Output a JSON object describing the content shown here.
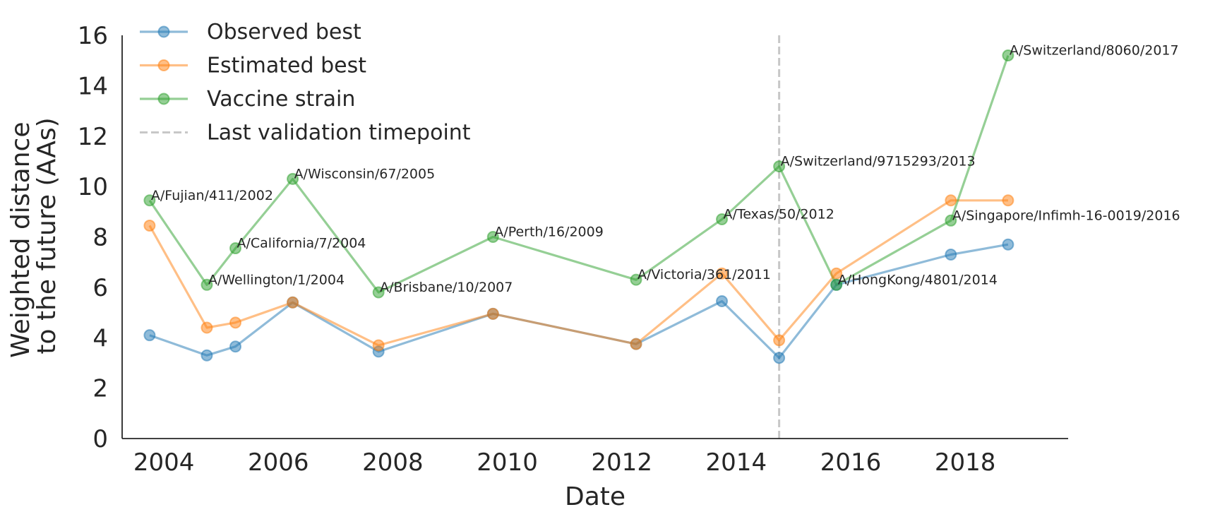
{
  "chart_data": {
    "type": "line",
    "xlabel": "Date",
    "ylabel_lines": [
      "Weighted distance",
      "to the future (AAs)"
    ],
    "xlim": [
      2003.27,
      2019.8
    ],
    "ylim": [
      0,
      16
    ],
    "xticks": [
      2004,
      2006,
      2008,
      2010,
      2012,
      2014,
      2016,
      2018
    ],
    "yticks": [
      0,
      2,
      4,
      6,
      8,
      10,
      12,
      14,
      16
    ],
    "grid": false,
    "legend_position": "top-left",
    "validation_line": {
      "label": "Last validation timepoint",
      "x": 2014.75,
      "color": "#c7c7c7"
    },
    "series": [
      {
        "name": "Observed best",
        "color": "#1f77b4",
        "points": [
          [
            2003.75,
            4.1
          ],
          [
            2004.75,
            3.3
          ],
          [
            2005.25,
            3.65
          ],
          [
            2006.25,
            5.4
          ],
          [
            2007.75,
            3.45
          ],
          [
            2009.75,
            4.95
          ],
          [
            2012.25,
            3.75
          ],
          [
            2013.75,
            5.45
          ],
          [
            2014.75,
            3.2
          ],
          [
            2015.75,
            6.1
          ],
          [
            2017.75,
            7.3
          ],
          [
            2018.75,
            7.7
          ]
        ]
      },
      {
        "name": "Estimated best",
        "color": "#ff7f0e",
        "points": [
          [
            2003.75,
            8.45
          ],
          [
            2004.75,
            4.4
          ],
          [
            2005.25,
            4.6
          ],
          [
            2006.25,
            5.4
          ],
          [
            2007.75,
            3.7
          ],
          [
            2009.75,
            4.95
          ],
          [
            2012.25,
            3.75
          ],
          [
            2013.75,
            6.55
          ],
          [
            2014.75,
            3.9
          ],
          [
            2015.75,
            6.55
          ],
          [
            2017.75,
            9.45
          ],
          [
            2018.75,
            9.45
          ]
        ]
      },
      {
        "name": "Vaccine strain",
        "color": "#2ca02c",
        "points": [
          [
            2003.75,
            9.45
          ],
          [
            2004.75,
            6.1
          ],
          [
            2005.25,
            7.55
          ],
          [
            2006.25,
            10.3
          ],
          [
            2007.75,
            5.8
          ],
          [
            2009.75,
            8.0
          ],
          [
            2012.25,
            6.3
          ],
          [
            2013.75,
            8.7
          ],
          [
            2014.75,
            10.8
          ],
          [
            2015.75,
            6.1
          ],
          [
            2017.75,
            8.65
          ],
          [
            2018.75,
            15.2
          ]
        ],
        "labels": [
          "A/Fujian/411/2002",
          "A/Wellington/1/2004",
          "A/California/7/2004",
          "A/Wisconsin/67/2005",
          "A/Brisbane/10/2007",
          "A/Perth/16/2009",
          "A/Victoria/361/2011",
          "A/Texas/50/2012",
          "A/Switzerland/9715293/2013",
          "A/HongKong/4801/2014",
          "A/Singapore/Infimh-16-0019/2016",
          "A/Switzerland/8060/2017"
        ]
      }
    ]
  }
}
